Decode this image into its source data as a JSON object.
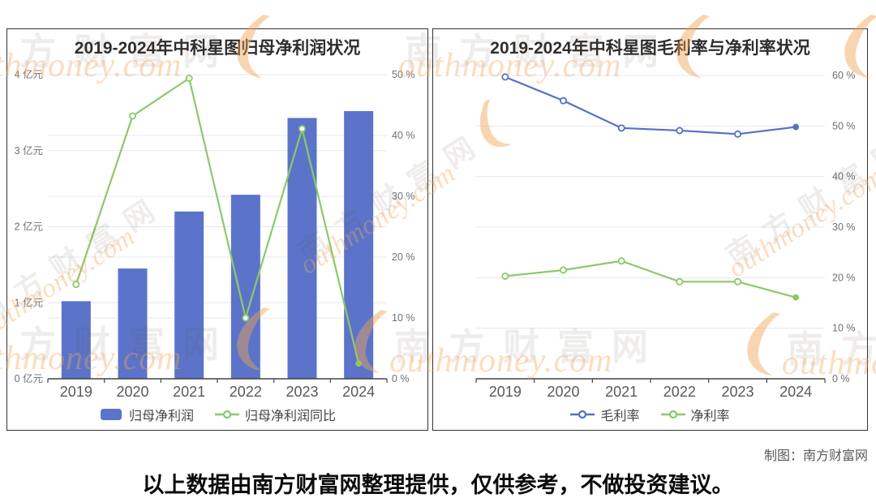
{
  "page": {
    "credit": "制图：南方财富网",
    "disclaimer": "以上数据由南方财富网整理提供，仅供参考，不做投资建议。"
  },
  "watermark": {
    "cn": "南方财富网",
    "en": "outhmoney.com"
  },
  "colors": {
    "bar": "#5b74c9",
    "blue_line": "#5470c6",
    "green_line": "#8bc96a",
    "grid": "#e3e7f0",
    "axis": "#444444",
    "tick_label": "#6e7079",
    "year_label": "#595959",
    "title": "#2e2e2e",
    "legend_text": "#454545"
  },
  "chart_data": [
    {
      "type": "bar",
      "title": "2019-2024年中科星图归母净利润状况",
      "categories": [
        "2019",
        "2020",
        "2021",
        "2022",
        "2023",
        "2024"
      ],
      "series": [
        {
          "id": "net-profit",
          "name": "归母净利润",
          "type": "bar",
          "axis": "left",
          "color_key": "bar",
          "unit": "亿元",
          "values": [
            1.02,
            1.45,
            2.2,
            2.42,
            3.43,
            3.52
          ]
        },
        {
          "id": "net-profit-yoy",
          "name": "归母净利润同比",
          "type": "line",
          "axis": "right",
          "color_key": "green_line",
          "unit": "%",
          "values": [
            15.5,
            43.2,
            49.4,
            10,
            41.1,
            2.5
          ]
        }
      ],
      "left_axis": {
        "min": 0,
        "max": 4,
        "step": 1,
        "suffix": " 亿元"
      },
      "right_axis": {
        "min": 0,
        "max": 50,
        "step": 10,
        "suffix": " %"
      },
      "grid": true,
      "legend_position": "bottom"
    },
    {
      "type": "line",
      "title": "2019-2024年中科星图毛利率与净利率状况",
      "categories": [
        "2019",
        "2020",
        "2021",
        "2022",
        "2023",
        "2024"
      ],
      "series": [
        {
          "id": "gross-margin",
          "name": "毛利率",
          "type": "line",
          "axis": "right",
          "color_key": "blue_line",
          "unit": "%",
          "values": [
            59.7,
            55,
            49.6,
            49.1,
            48.4,
            49.8
          ]
        },
        {
          "id": "net-margin",
          "name": "净利率",
          "type": "line",
          "axis": "right",
          "color_key": "green_line",
          "unit": "%",
          "values": [
            20.3,
            21.5,
            23.3,
            19.2,
            19.2,
            16.1
          ]
        }
      ],
      "right_axis": {
        "min": 0,
        "max": 60,
        "step": 10,
        "suffix": " %"
      },
      "grid": true,
      "legend_position": "bottom"
    }
  ]
}
